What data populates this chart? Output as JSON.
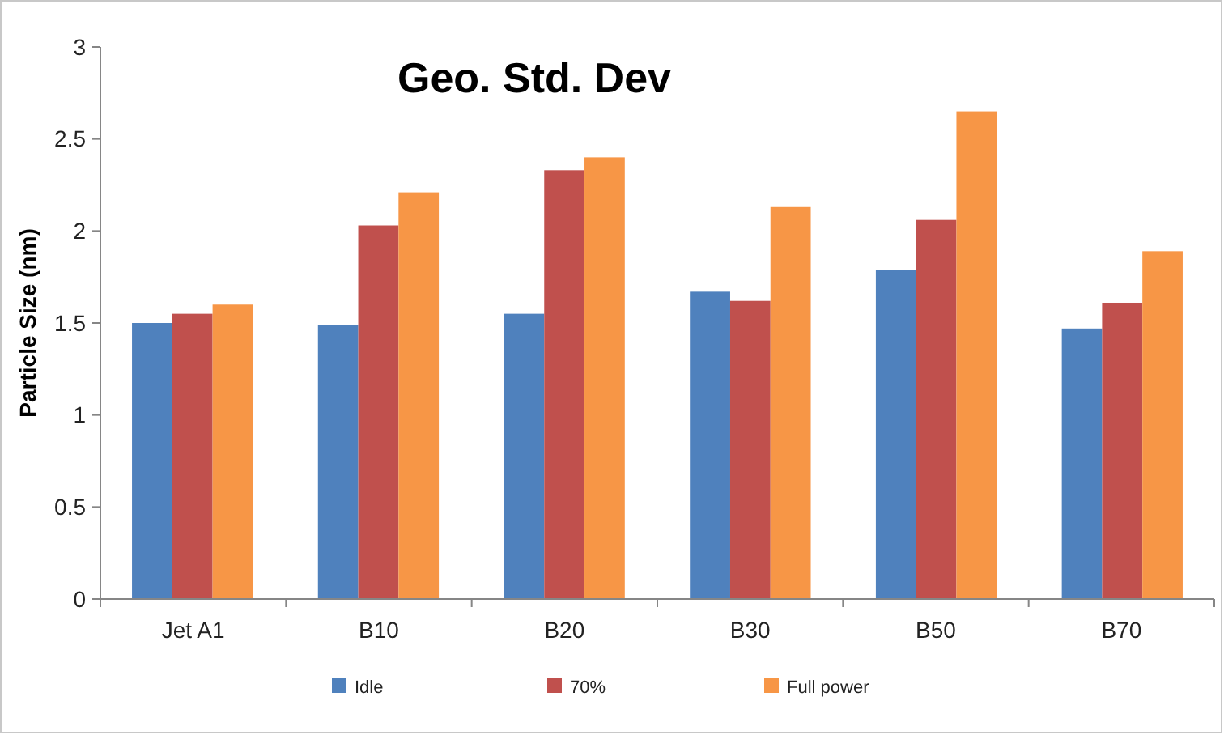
{
  "chart_data": {
    "type": "bar",
    "title": "Geo. Std. Dev",
    "ylabel": "Particle Size (nm)",
    "categories": [
      "Jet A1",
      "B10",
      "B20",
      "B30",
      "B50",
      "B70"
    ],
    "series": [
      {
        "name": "Idle",
        "color": "#4f81bd",
        "values": [
          1.5,
          1.49,
          1.55,
          1.67,
          1.79,
          1.47
        ]
      },
      {
        "name": "70%",
        "color": "#c0504d",
        "values": [
          1.55,
          2.03,
          2.33,
          1.62,
          2.06,
          1.61
        ]
      },
      {
        "name": "Full power",
        "color": "#f79646",
        "values": [
          1.6,
          2.21,
          2.4,
          2.13,
          2.65,
          1.89
        ]
      }
    ],
    "ylim": [
      0,
      3
    ],
    "yticks": [
      0,
      0.5,
      1,
      1.5,
      2,
      2.5,
      3
    ],
    "grid": false,
    "legend": "bottom"
  }
}
